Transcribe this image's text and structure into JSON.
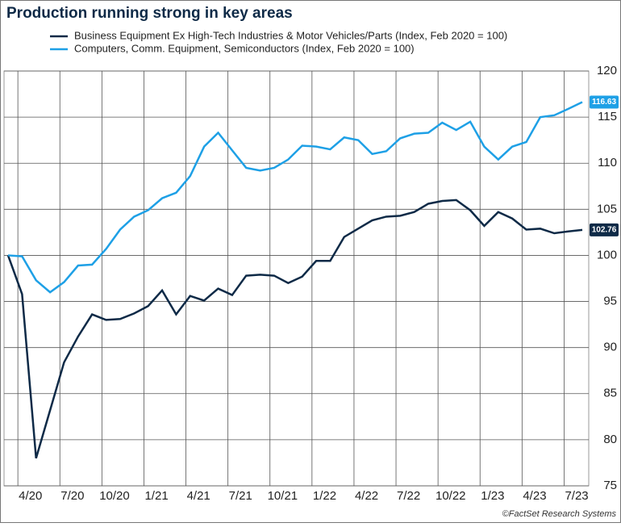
{
  "chart_data": {
    "type": "line",
    "title": "Production running strong in key areas",
    "source": "©FactSet Research Systems",
    "categories": [
      null,
      null,
      "4/20",
      null,
      null,
      "7/20",
      null,
      null,
      "10/20",
      null,
      null,
      "1/21",
      null,
      null,
      "4/21",
      null,
      null,
      "7/21",
      null,
      null,
      "10/21",
      null,
      null,
      "1/22",
      null,
      null,
      "4/22",
      null,
      null,
      "7/22",
      null,
      null,
      "10/22",
      null,
      null,
      "1/23",
      null,
      null,
      "4/23",
      null,
      null,
      "7/23"
    ],
    "series": [
      {
        "name": "Business Equipment Ex High-Tech Industries & Motor Vehicles/Parts (Index, Feb 2020 = 100)",
        "color": "#0e2a47",
        "values": [
          100,
          95.8,
          78,
          83.2,
          88.4,
          91.2,
          93.6,
          93.0,
          93.1,
          93.7,
          94.5,
          96.2,
          93.6,
          95.6,
          95.1,
          96.4,
          95.7,
          97.8,
          97.9,
          97.8,
          97.0,
          97.7,
          99.4,
          99.4,
          102.0,
          102.9,
          103.8,
          104.2,
          104.3,
          104.7,
          105.6,
          105.9,
          106.0,
          104.9,
          103.2,
          104.7,
          104.0,
          102.8,
          102.9,
          102.4,
          102.6,
          102.76
        ]
      },
      {
        "name": "Computers, Comm. Equipment, Semiconductors (Index, Feb 2020 = 100)",
        "color": "#1ea0e6",
        "values": [
          100,
          99.9,
          97.3,
          96.0,
          97.1,
          98.9,
          99.0,
          100.7,
          102.8,
          104.2,
          104.9,
          106.2,
          106.8,
          108.6,
          111.8,
          113.3,
          111.4,
          109.5,
          109.2,
          109.5,
          110.4,
          111.9,
          111.8,
          111.5,
          112.8,
          112.5,
          111.0,
          111.3,
          112.7,
          113.2,
          113.3,
          114.4,
          113.6,
          114.5,
          111.8,
          110.4,
          111.8,
          112.3,
          115.0,
          115.2,
          115.9,
          116.63
        ]
      }
    ],
    "ylim": [
      75,
      120
    ],
    "yticks": [
      75,
      80,
      85,
      90,
      95,
      100,
      105,
      110,
      115,
      120
    ],
    "grid": true
  }
}
